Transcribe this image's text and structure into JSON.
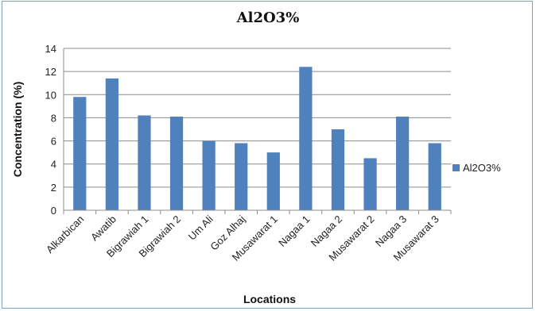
{
  "chart_data": {
    "type": "bar",
    "title": "Al2O3%",
    "xlabel": "Locations",
    "ylabel": "Concentration (%)",
    "ylim": [
      0,
      14
    ],
    "yticks": [
      0,
      2,
      4,
      6,
      8,
      10,
      12,
      14
    ],
    "grid": true,
    "legend_position": "right",
    "categories": [
      "Alkarbican",
      "Awatib",
      "Bigrawiah 1",
      "Bigrawiah 2",
      "Um Ali",
      "Goz Alhaj",
      "Musawarat 1",
      "Nagaa 1",
      "Nagaa 2",
      "Musawarat 2",
      "Nagaa 3",
      "Musawarat 3"
    ],
    "series": [
      {
        "name": "Al2O3%",
        "color": "#4f81bd",
        "values": [
          9.8,
          11.4,
          8.2,
          8.1,
          6.0,
          5.8,
          5.0,
          12.4,
          7.0,
          4.5,
          8.1,
          5.8
        ]
      }
    ]
  }
}
